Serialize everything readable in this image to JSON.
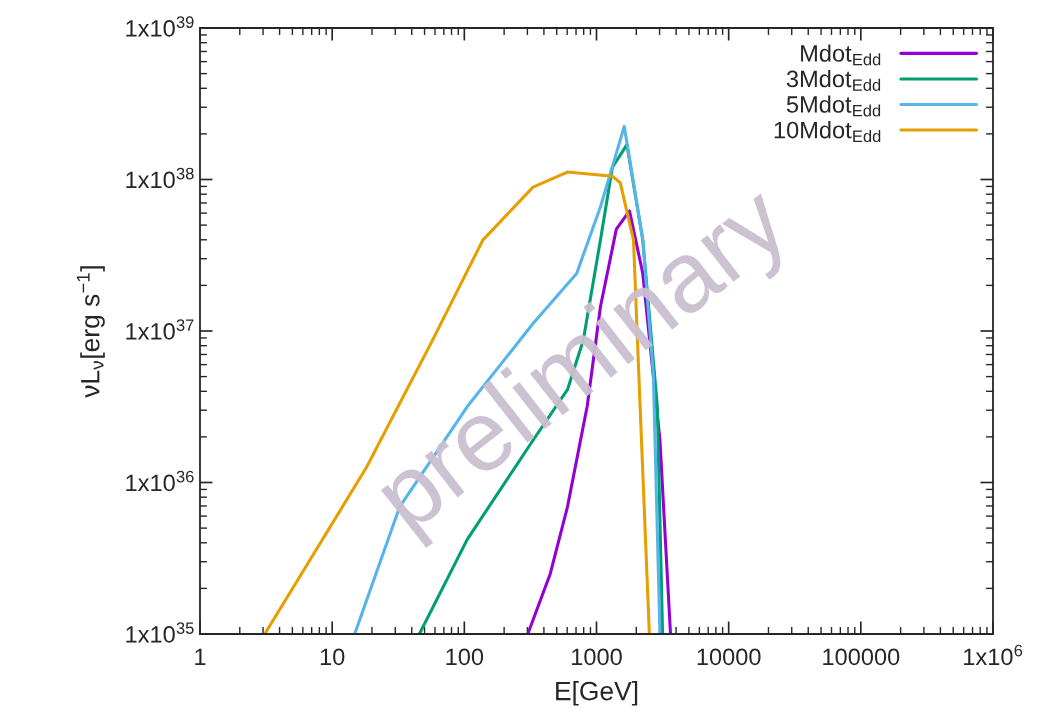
{
  "chart_data": {
    "type": "line",
    "xlabel": "E[GeV]",
    "ylabel": "νL$_{ν}$[erg s$^{−1}$]",
    "log": "xy",
    "legend": "top right",
    "grid": false,
    "line_style": "solid",
    "xlim": [
      1,
      1000000
    ],
    "xticks": [
      1,
      10,
      100,
      1000,
      10000,
      100000,
      {
        "value": 1000000,
        "label": "1x10$^{6}$"
      }
    ],
    "ylim": [
      1e+35,
      1e+39
    ],
    "yticks": [
      {
        "value": 1e+35,
        "label": "1x10$^{35}$"
      },
      {
        "value": 1e+36,
        "label": "1x10$^{36}$"
      },
      {
        "value": 1e+37,
        "label": "1x10$^{37}$"
      },
      {
        "value": 1e+38,
        "label": "1x10$^{38}$"
      },
      {
        "value": 1e+39,
        "label": "1x10$^{39}$"
      }
    ],
    "annotations": [
      "preliminary"
    ],
    "series": [
      {
        "name": "Mdot$_{Edd}$",
        "color": "#9400d3",
        "x": [
          302,
          447,
          603,
          851,
          1072,
          1413,
          1778,
          2239,
          3020,
          3631
        ],
        "values": [
          1e+35,
          2.5e+35,
          6.9e+35,
          3.2e+36,
          1.45e+37,
          4.7e+37,
          6.2e+37,
          2.4e+37,
          1.9e+36,
          1e+35
        ]
      },
      {
        "name": "3Mdot$_{Edd}$",
        "color": "#009e73",
        "x": [
          45.7,
          105,
          331,
          603,
          794,
          1072,
          1318,
          1698,
          2239,
          2884,
          3162
        ],
        "values": [
          1e+35,
          4.2e+35,
          1.9e+36,
          4.1e+36,
          8.7e+36,
          4e+37,
          1.2e+38,
          1.7e+38,
          4e+37,
          3.2e+36,
          1e+35
        ]
      },
      {
        "name": "5Mdot$_{Edd}$",
        "color": "#56b4e9",
        "x": [
          14.8,
          32.4,
          105,
          331,
          708,
          1072,
          1622,
          2239,
          2692,
          3020
        ],
        "values": [
          1e+35,
          6.9e+35,
          3.16e+36,
          1.12e+37,
          2.4e+37,
          6.6e+37,
          2.24e+38,
          4e+37,
          5.2e+36,
          1e+35
        ]
      },
      {
        "name": "10Mdot$_{Edd}$",
        "color": "#e69f00",
        "x": [
          3.09,
          18.2,
          57.5,
          138,
          331,
          603,
          1318,
          1514,
          1905,
          2138,
          2512
        ],
        "values": [
          1e+35,
          1.26e+36,
          8.7e+36,
          3.98e+37,
          8.9e+37,
          1.12e+38,
          1.05e+38,
          9.5e+37,
          3.98e+37,
          3.16e+36,
          1e+35
        ]
      }
    ]
  }
}
